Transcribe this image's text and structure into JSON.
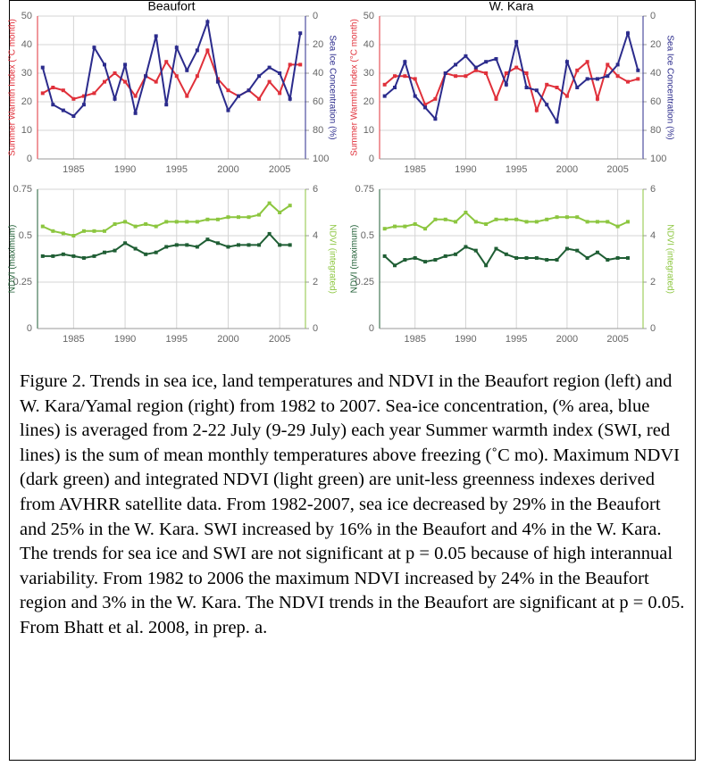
{
  "chart_data": [
    {
      "type": "line",
      "title": "Beaufort",
      "ylabel": "Summer Warmth Index (°C month)",
      "y2label": "Sea Ice Concentration (%)",
      "x": [
        1982,
        1983,
        1984,
        1985,
        1986,
        1987,
        1988,
        1989,
        1990,
        1991,
        1992,
        1993,
        1994,
        1995,
        1996,
        1997,
        1998,
        1999,
        2000,
        2001,
        2002,
        2003,
        2004,
        2005,
        2006,
        2007
      ],
      "xlim": [
        1981.5,
        2007.5
      ],
      "xticks": [
        1985,
        1990,
        1995,
        2000,
        2005
      ],
      "ylim": [
        0,
        50
      ],
      "yticks": [
        0,
        10,
        20,
        30,
        40,
        50
      ],
      "y2lim": [
        100,
        0
      ],
      "y2ticks": [
        0,
        20,
        40,
        60,
        80,
        100
      ],
      "grid": true,
      "series": [
        {
          "name": "Summer Warmth Index",
          "color": "#e0303a",
          "values": [
            23,
            25,
            24,
            21,
            22,
            23,
            27,
            30,
            27,
            22,
            29,
            27,
            34,
            29,
            22,
            29,
            38,
            28,
            24,
            22,
            24,
            21,
            27,
            23,
            33,
            33
          ]
        },
        {
          "name": "Sea Ice Concentration",
          "color": "#2b2b8c",
          "axis": "y2",
          "values": [
            36,
            62,
            66,
            70,
            62,
            22,
            34,
            58,
            34,
            68,
            42,
            14,
            62,
            22,
            38,
            24,
            4,
            46,
            66,
            56,
            52,
            42,
            36,
            40,
            58,
            12
          ]
        }
      ]
    },
    {
      "type": "line",
      "title": "W. Kara",
      "ylabel": "Summer Warmth Index (°C month)",
      "y2label": "Sea Ice Concentration (%)",
      "x": [
        1982,
        1983,
        1984,
        1985,
        1986,
        1987,
        1988,
        1989,
        1990,
        1991,
        1992,
        1993,
        1994,
        1995,
        1996,
        1997,
        1998,
        1999,
        2000,
        2001,
        2002,
        2003,
        2004,
        2005,
        2006,
        2007
      ],
      "xlim": [
        1981.5,
        2007.5
      ],
      "xticks": [
        1985,
        1990,
        1995,
        2000,
        2005
      ],
      "ylim": [
        0,
        50
      ],
      "yticks": [
        0,
        10,
        20,
        30,
        40,
        50
      ],
      "y2lim": [
        100,
        0
      ],
      "y2ticks": [
        0,
        20,
        40,
        60,
        80,
        100
      ],
      "grid": true,
      "series": [
        {
          "name": "Summer Warmth Index",
          "color": "#e0303a",
          "values": [
            26,
            29,
            29,
            28,
            19,
            21,
            30,
            29,
            29,
            31,
            30,
            21,
            30,
            32,
            30,
            17,
            26,
            25,
            22,
            31,
            34,
            21,
            33,
            29,
            27,
            28
          ]
        },
        {
          "name": "Sea Ice Concentration",
          "color": "#2b2b8c",
          "axis": "y2",
          "values": [
            56,
            50,
            32,
            56,
            64,
            72,
            40,
            34,
            28,
            36,
            32,
            30,
            48,
            18,
            50,
            52,
            62,
            74,
            32,
            50,
            44,
            44,
            42,
            34,
            12,
            38
          ]
        }
      ]
    },
    {
      "type": "line",
      "ylabel": "NDVI (maximum)",
      "y2label": "NDVI (integrated)",
      "x": [
        1982,
        1983,
        1984,
        1985,
        1986,
        1987,
        1988,
        1989,
        1990,
        1991,
        1992,
        1993,
        1994,
        1995,
        1996,
        1997,
        1998,
        1999,
        2000,
        2001,
        2002,
        2003,
        2004,
        2005,
        2006
      ],
      "xlim": [
        1981.5,
        2007.5
      ],
      "xticks": [
        1985,
        1990,
        1995,
        2000,
        2005
      ],
      "ylim": [
        0,
        0.75
      ],
      "yticks": [
        0,
        0.25,
        0.5,
        0.75
      ],
      "y2lim": [
        0,
        6
      ],
      "y2ticks": [
        0,
        2,
        4,
        6
      ],
      "grid": true,
      "series": [
        {
          "name": "NDVI (maximum)",
          "color": "#1f5e34",
          "values": [
            0.39,
            0.39,
            0.4,
            0.39,
            0.38,
            0.39,
            0.41,
            0.42,
            0.46,
            0.43,
            0.4,
            0.41,
            0.44,
            0.45,
            0.45,
            0.44,
            0.48,
            0.46,
            0.44,
            0.45,
            0.45,
            0.45,
            0.51,
            0.45,
            0.45
          ]
        },
        {
          "name": "NDVI (integrated)",
          "color": "#8cc63f",
          "axis": "y2",
          "values": [
            4.4,
            4.2,
            4.1,
            4.0,
            4.2,
            4.2,
            4.2,
            4.5,
            4.6,
            4.4,
            4.5,
            4.4,
            4.6,
            4.6,
            4.6,
            4.6,
            4.7,
            4.7,
            4.8,
            4.8,
            4.8,
            4.9,
            5.4,
            5.0,
            5.3
          ]
        }
      ]
    },
    {
      "type": "line",
      "ylabel": "NDVI (maximum)",
      "y2label": "NDVI (integrated)",
      "x": [
        1982,
        1983,
        1984,
        1985,
        1986,
        1987,
        1988,
        1989,
        1990,
        1991,
        1992,
        1993,
        1994,
        1995,
        1996,
        1997,
        1998,
        1999,
        2000,
        2001,
        2002,
        2003,
        2004,
        2005,
        2006
      ],
      "xlim": [
        1981.5,
        2007.5
      ],
      "xticks": [
        1985,
        1990,
        1995,
        2000,
        2005
      ],
      "ylim": [
        0,
        0.75
      ],
      "yticks": [
        0,
        0.25,
        0.5,
        0.75
      ],
      "y2lim": [
        0,
        6
      ],
      "y2ticks": [
        0,
        2,
        4,
        6
      ],
      "grid": true,
      "series": [
        {
          "name": "NDVI (maximum)",
          "color": "#1f5e34",
          "values": [
            0.39,
            0.34,
            0.37,
            0.38,
            0.36,
            0.37,
            0.39,
            0.4,
            0.44,
            0.42,
            0.34,
            0.43,
            0.4,
            0.38,
            0.38,
            0.38,
            0.37,
            0.37,
            0.43,
            0.42,
            0.38,
            0.41,
            0.37,
            0.38,
            0.38
          ]
        },
        {
          "name": "NDVI (integrated)",
          "color": "#8cc63f",
          "axis": "y2",
          "values": [
            4.3,
            4.4,
            4.4,
            4.5,
            4.3,
            4.7,
            4.7,
            4.6,
            5.0,
            4.6,
            4.5,
            4.7,
            4.7,
            4.7,
            4.6,
            4.6,
            4.7,
            4.8,
            4.8,
            4.8,
            4.6,
            4.6,
            4.6,
            4.4,
            4.6
          ]
        }
      ]
    }
  ],
  "caption": "Figure 2. Trends in sea ice, land temperatures and NDVI in the Beaufort region (left) and W. Kara/Yamal region (right) from 1982 to 2007. Sea-ice concentration, (% area, blue lines) is averaged from 2-22 July  (9-29 July) each year  Summer warmth index (SWI, red lines) is the sum of mean monthly temperatures above freezing (˚C mo).  Maximum NDVI (dark green) and integrated NDVI (light green) are unit-less greenness indexes derived from AVHRR satellite data.  From 1982-2007, sea ice decreased by 29% in the Beaufort and 25% in the W. Kara. SWI increased by 16% in the Beaufort and 4% in the W. Kara. The trends for sea ice and SWI are not significant at p = 0.05 because of high interannual variability. From 1982 to 2006 the maximum NDVI increased by 24% in the Beaufort region and 3% in the W. Kara. The NDVI trends in the Beaufort are significant at p = 0.05. From Bhatt et al. 2008, in prep. a."
}
